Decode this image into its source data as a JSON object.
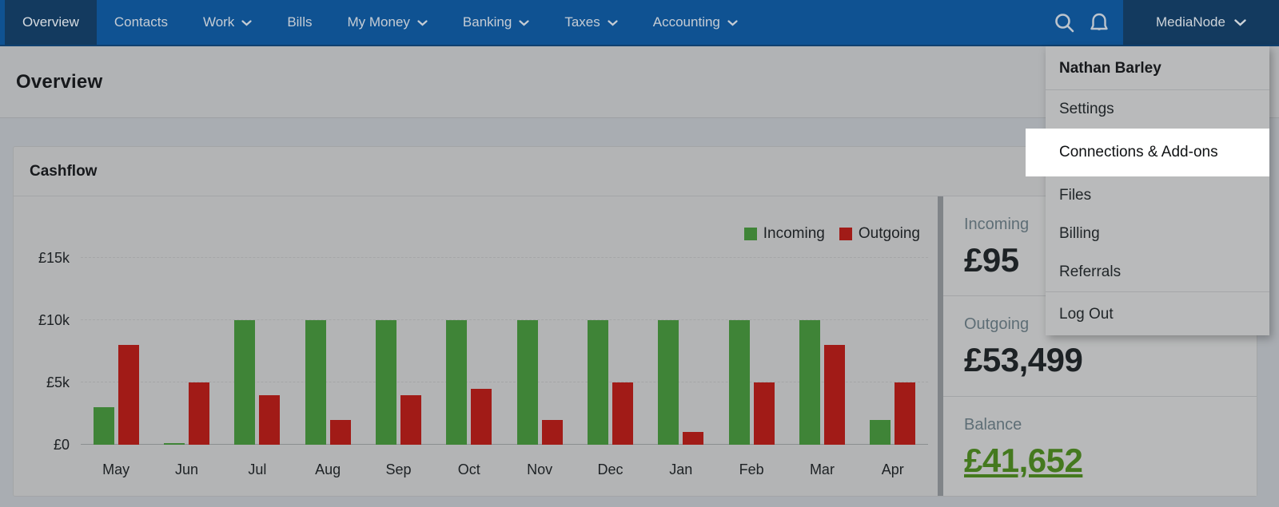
{
  "nav": {
    "items": [
      {
        "label": "Overview",
        "active": true,
        "chevron": false
      },
      {
        "label": "Contacts",
        "active": false,
        "chevron": false
      },
      {
        "label": "Work",
        "active": false,
        "chevron": true
      },
      {
        "label": "Bills",
        "active": false,
        "chevron": false
      },
      {
        "label": "My Money",
        "active": false,
        "chevron": true
      },
      {
        "label": "Banking",
        "active": false,
        "chevron": true
      },
      {
        "label": "Taxes",
        "active": false,
        "chevron": true
      },
      {
        "label": "Accounting",
        "active": false,
        "chevron": true
      }
    ],
    "icons": [
      {
        "name": "search-icon"
      },
      {
        "name": "notification-bell-icon"
      }
    ],
    "account": {
      "label": "MediaNode",
      "chevron": true
    }
  },
  "page": {
    "title": "Overview"
  },
  "card": {
    "title": "Cashflow"
  },
  "chart_data": {
    "type": "bar",
    "title": "Cashflow",
    "categories": [
      "May",
      "Jun",
      "Jul",
      "Aug",
      "Sep",
      "Oct",
      "Nov",
      "Dec",
      "Jan",
      "Feb",
      "Mar",
      "Apr"
    ],
    "series": [
      {
        "name": "Incoming",
        "color": "#3f8437",
        "values": [
          3000,
          100,
          10000,
          10000,
          10000,
          10000,
          10000,
          10000,
          10000,
          10000,
          10000,
          2000
        ]
      },
      {
        "name": "Outgoing",
        "color": "#a11b17",
        "values": [
          8000,
          5000,
          4000,
          2000,
          4000,
          4500,
          2000,
          5000,
          1000,
          5000,
          8000,
          5000
        ]
      }
    ],
    "ylabels": [
      "£0",
      "£5k",
      "£10k",
      "£15k"
    ],
    "ylim": [
      0,
      15000
    ],
    "ytick_step": 5000,
    "grid": "dashed-horizontal",
    "legend_position": "top-right",
    "currency": "£"
  },
  "stats": [
    {
      "label": "Incoming",
      "value": "£95",
      "style": "dark",
      "note_visible_partially_occluded": true
    },
    {
      "label": "Outgoing",
      "value": "£53,499",
      "style": "dark"
    },
    {
      "label": "Balance",
      "value": "£41,652",
      "style": "green-link"
    }
  ],
  "menu": {
    "user_name": "Nathan Barley",
    "items": [
      {
        "label": "Settings",
        "highlighted": false,
        "divider_above": false
      },
      {
        "label": "Connections & Add-ons",
        "highlighted": true,
        "divider_above": false
      },
      {
        "label": "Files",
        "highlighted": false,
        "divider_above": false
      },
      {
        "label": "Billing",
        "highlighted": false,
        "divider_above": false
      },
      {
        "label": "Referrals",
        "highlighted": false,
        "divider_above": false
      },
      {
        "label": "Log Out",
        "highlighted": false,
        "divider_above": true
      }
    ]
  },
  "colors": {
    "nav_blue": "#0f5292",
    "nav_active_blue": "#133a5f",
    "incoming_green": "#3f8437",
    "outgoing_red": "#a11b17",
    "balance_green": "#44791e",
    "menu_highlight": "#ffffff"
  }
}
